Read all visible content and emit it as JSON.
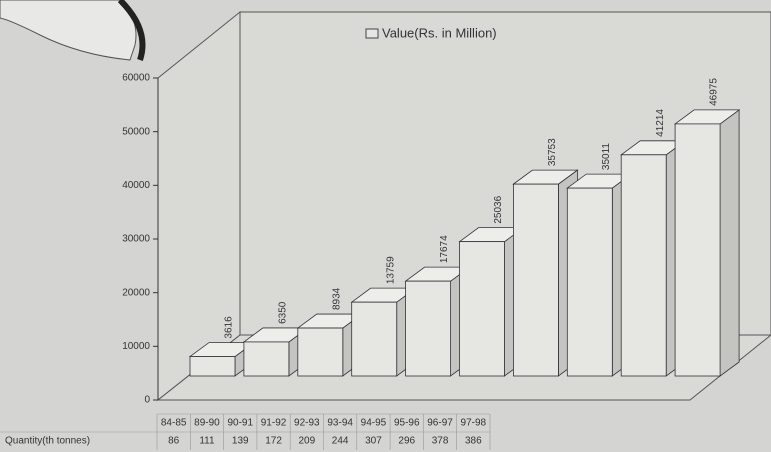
{
  "chart_data": {
    "type": "bar3d",
    "categories": [
      "84-85",
      "89-90",
      "90-91",
      "91-92",
      "92-93",
      "93-94",
      "94-95",
      "95-96",
      "96-97",
      "97-98"
    ],
    "series": [
      {
        "name": "Value(Rs. in Million)",
        "color": "#e6e6e3",
        "values": [
          3616,
          6350,
          8934,
          13759,
          17674,
          25036,
          35753,
          35011,
          41214,
          46975
        ]
      }
    ],
    "data_table": {
      "label": "Quantity(th tonnes)",
      "values": [
        86,
        111,
        139,
        172,
        209,
        244,
        307,
        296,
        378,
        386
      ]
    },
    "ylim": [
      0,
      60000
    ],
    "yticks": [
      0,
      10000,
      20000,
      30000,
      40000,
      50000,
      60000
    ],
    "legend": "top",
    "grid": false
  }
}
